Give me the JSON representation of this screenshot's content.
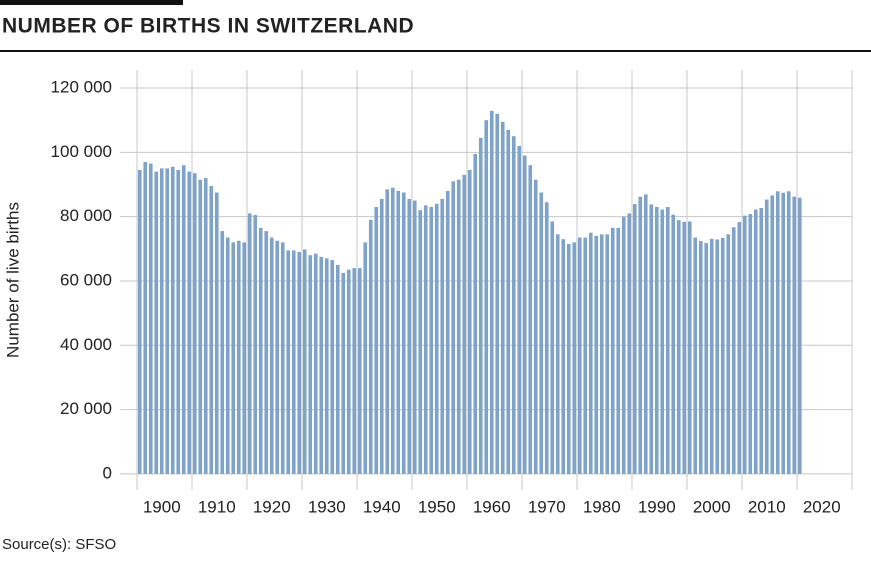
{
  "chart_data": {
    "type": "bar",
    "title": "NUMBER OF BIRTHS IN SWITZERLAND",
    "ylabel": "Number of live births",
    "source": "Source(s): SFSO",
    "color": "#7ea2c8",
    "x": [
      1900,
      1901,
      1902,
      1903,
      1904,
      1905,
      1906,
      1907,
      1908,
      1909,
      1910,
      1911,
      1912,
      1913,
      1914,
      1915,
      1916,
      1917,
      1918,
      1919,
      1920,
      1921,
      1922,
      1923,
      1924,
      1925,
      1926,
      1927,
      1928,
      1929,
      1930,
      1931,
      1932,
      1933,
      1934,
      1935,
      1936,
      1937,
      1938,
      1939,
      1940,
      1941,
      1942,
      1943,
      1944,
      1945,
      1946,
      1947,
      1948,
      1949,
      1950,
      1951,
      1952,
      1953,
      1954,
      1955,
      1956,
      1957,
      1958,
      1959,
      1960,
      1961,
      1962,
      1963,
      1964,
      1965,
      1966,
      1967,
      1968,
      1969,
      1970,
      1971,
      1972,
      1973,
      1974,
      1975,
      1976,
      1977,
      1978,
      1979,
      1980,
      1981,
      1982,
      1983,
      1984,
      1985,
      1986,
      1987,
      1988,
      1989,
      1990,
      1991,
      1992,
      1993,
      1994,
      1995,
      1996,
      1997,
      1998,
      1999,
      2000,
      2001,
      2002,
      2003,
      2004,
      2005,
      2006,
      2007,
      2008,
      2009,
      2010,
      2011,
      2012,
      2013,
      2014,
      2015,
      2016,
      2017,
      2018,
      2019,
      2020
    ],
    "values": [
      94500,
      97000,
      96500,
      94000,
      95000,
      95000,
      95500,
      94500,
      96000,
      94000,
      93500,
      91500,
      92000,
      89500,
      87500,
      75500,
      73500,
      72000,
      72500,
      72000,
      81000,
      80500,
      76500,
      75500,
      73500,
      72500,
      72000,
      69500,
      69500,
      69000,
      69800,
      68000,
      68500,
      67500,
      67000,
      66500,
      65000,
      62500,
      63500,
      64000,
      64000,
      72000,
      79000,
      83000,
      85500,
      88500,
      89000,
      88000,
      87500,
      85500,
      85000,
      82000,
      83500,
      83000,
      84000,
      85500,
      88000,
      91000,
      91500,
      93000,
      94500,
      99500,
      104500,
      110000,
      112900,
      112000,
      109500,
      107000,
      105000,
      102000,
      99000,
      96000,
      91500,
      87500,
      84500,
      78500,
      74500,
      73000,
      71500,
      72000,
      73500,
      73500,
      75000,
      74000,
      74500,
      74500,
      76500,
      76500,
      80000,
      81000,
      83900,
      86200,
      86900,
      83800,
      83000,
      82200,
      83000,
      80600,
      78900,
      78400,
      78500,
      73500,
      72400,
      71800,
      73100,
      72900,
      73400,
      74500,
      76700,
      78300,
      80300,
      80800,
      82200,
      82700,
      85300,
      86600,
      87900,
      87400,
      87900,
      86200,
      85900
    ],
    "xlim": [
      1900,
      2030
    ],
    "xticks": [
      1900,
      1910,
      1920,
      1930,
      1940,
      1950,
      1960,
      1970,
      1980,
      1990,
      2000,
      2010,
      2020
    ],
    "ylim": [
      -5000,
      125600
    ],
    "yticks": [
      0,
      {
        "value": 20000,
        "label": "20 000"
      },
      {
        "value": 40000,
        "label": "40 000"
      },
      {
        "value": 60000,
        "label": "60 000"
      },
      {
        "value": 80000,
        "label": "80 000"
      },
      {
        "value": 100000,
        "label": "100 000"
      },
      {
        "value": 120000,
        "label": "120 000"
      }
    ],
    "grid": true
  }
}
